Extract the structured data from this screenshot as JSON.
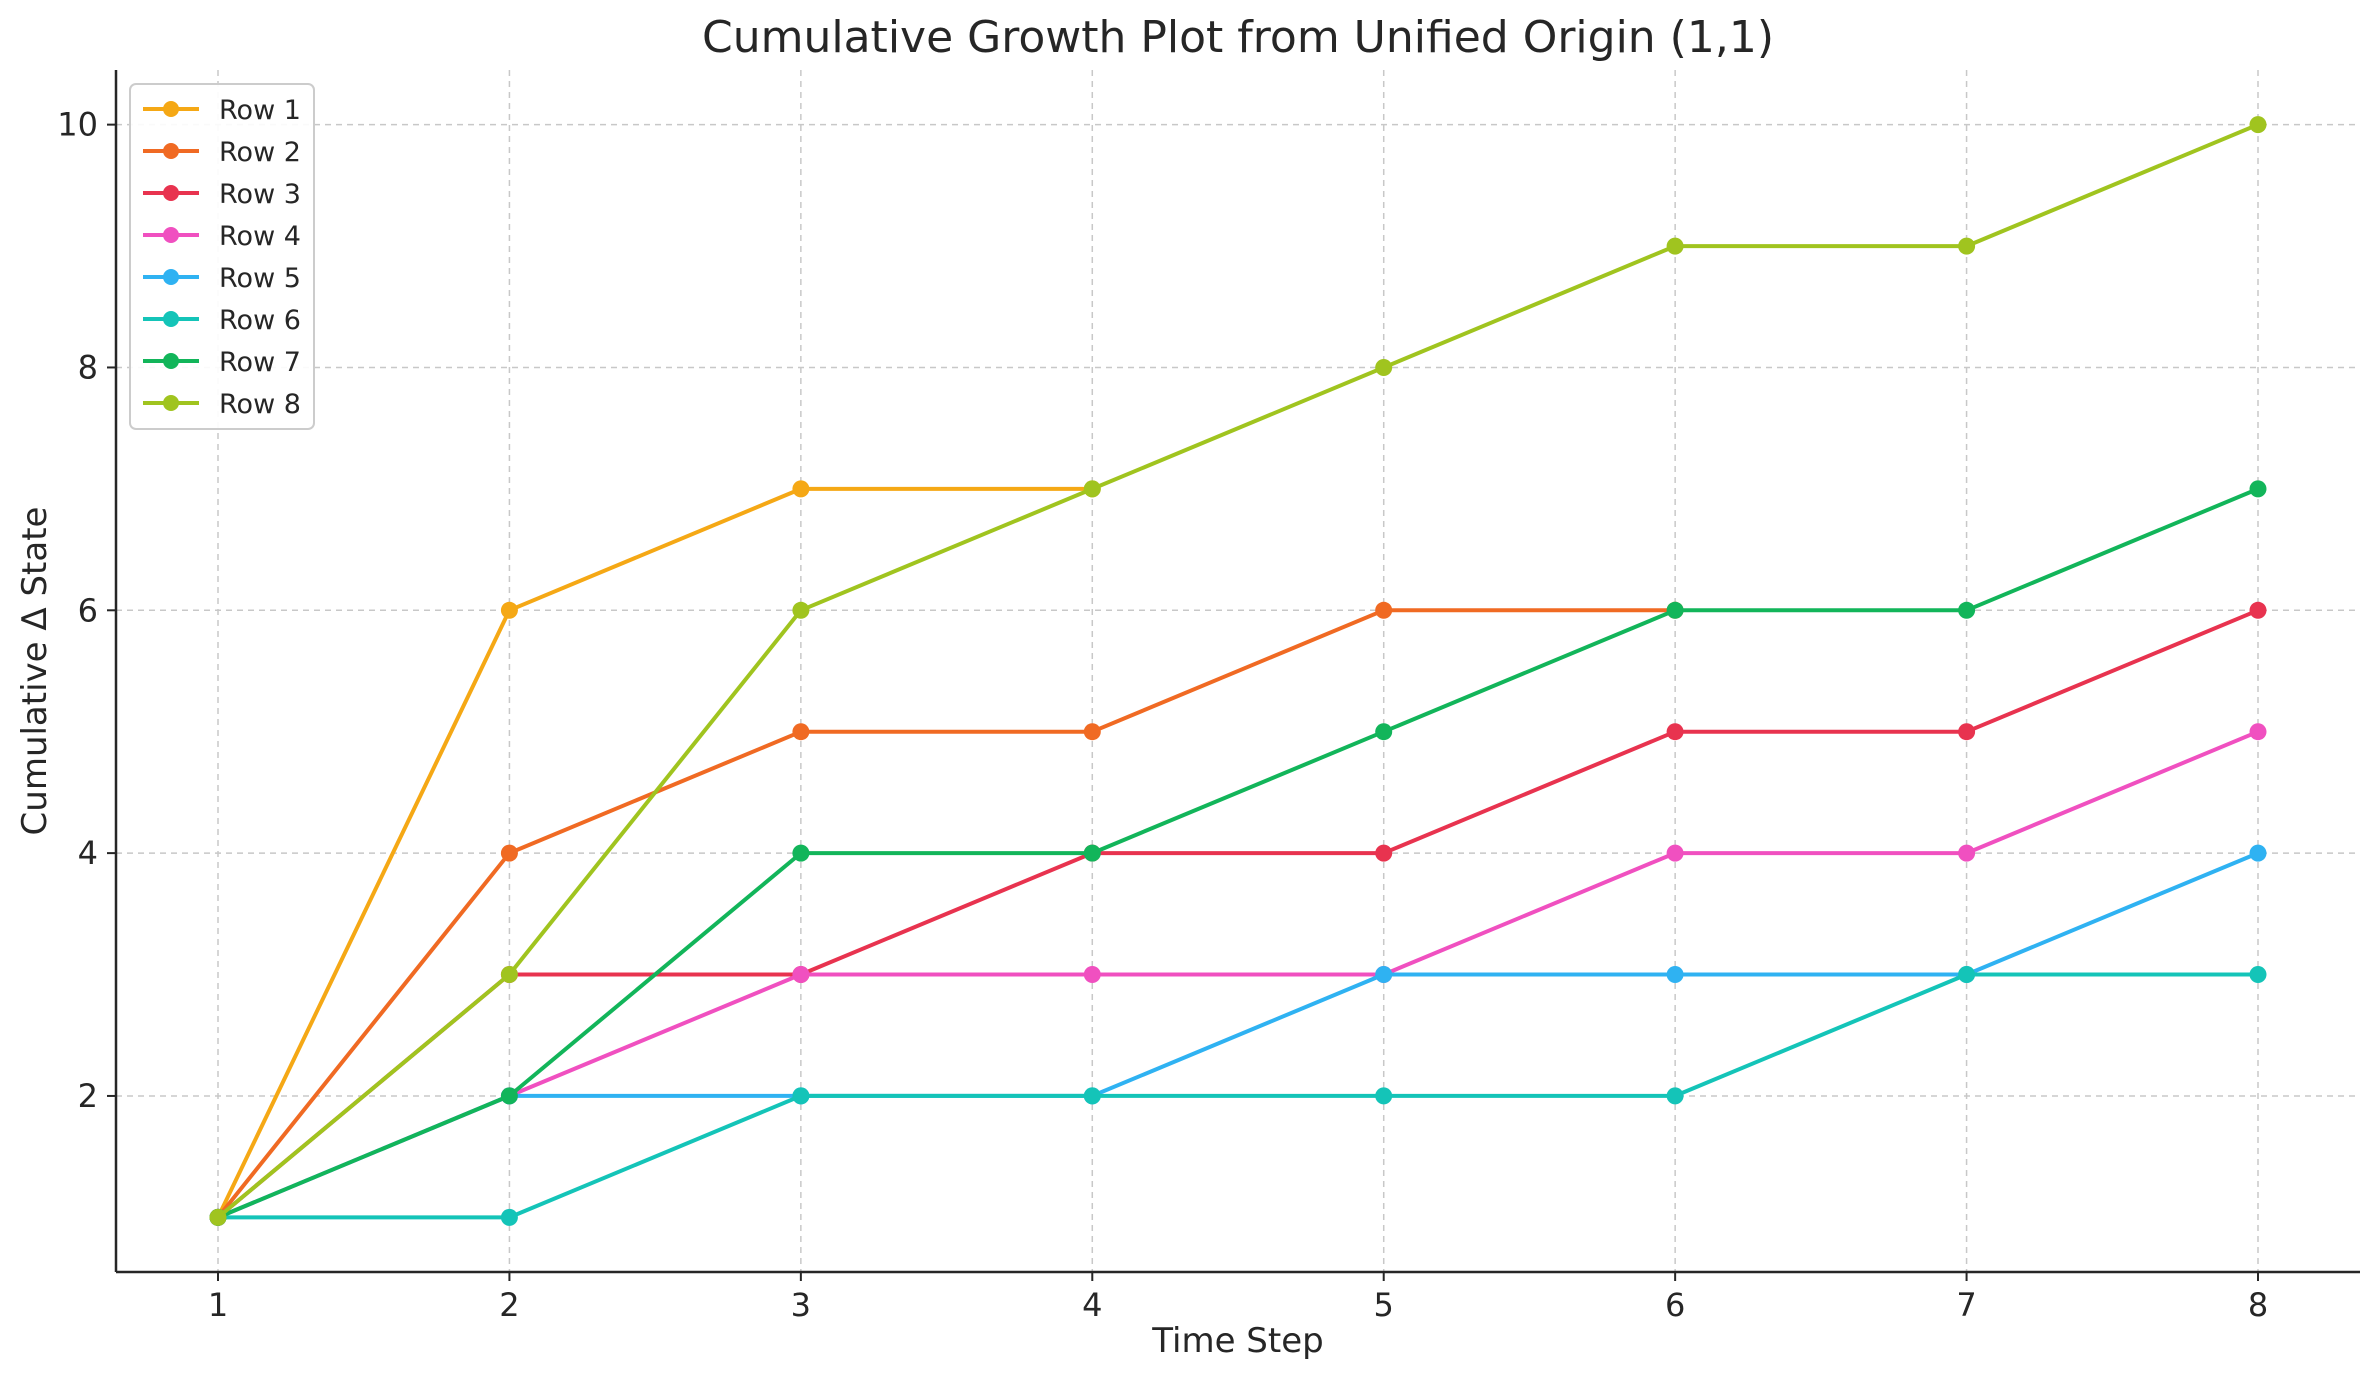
{
  "chart_data": {
    "type": "line",
    "title": "Cumulative Growth Plot from Unified Origin (1,1)",
    "xlabel": "Time Step",
    "ylabel": "Cumulative Δ State",
    "x": [
      1,
      2,
      3,
      4,
      5,
      6,
      7,
      8
    ],
    "xticks": [
      1,
      2,
      3,
      4,
      5,
      6,
      7,
      8
    ],
    "yticks": [
      2,
      4,
      6,
      8,
      10
    ],
    "xlim": [
      0.65,
      8.35
    ],
    "ylim": [
      0.55,
      10.45
    ],
    "grid": true,
    "grid_style": "dashed",
    "legend_position": "upper-left",
    "marker": "circle",
    "series": [
      {
        "name": "Row 1",
        "color": "#f5a815",
        "values": [
          1,
          6,
          7,
          7,
          null,
          null,
          null,
          null
        ]
      },
      {
        "name": "Row 2",
        "color": "#f06a23",
        "values": [
          1,
          4,
          5,
          5,
          6,
          6,
          null,
          null
        ]
      },
      {
        "name": "Row 3",
        "color": "#e8334f",
        "values": [
          1,
          3,
          3,
          4,
          4,
          5,
          5,
          6
        ]
      },
      {
        "name": "Row 4",
        "color": "#f050c0",
        "values": [
          1,
          2,
          3,
          3,
          3,
          4,
          4,
          5
        ]
      },
      {
        "name": "Row 5",
        "color": "#2fb2f2",
        "values": [
          1,
          2,
          2,
          2,
          3,
          3,
          3,
          4
        ]
      },
      {
        "name": "Row 6",
        "color": "#14c4b8",
        "values": [
          1,
          1,
          2,
          2,
          2,
          2,
          3,
          3
        ]
      },
      {
        "name": "Row 7",
        "color": "#12b55a",
        "values": [
          1,
          2,
          4,
          4,
          5,
          6,
          6,
          7
        ]
      },
      {
        "name": "Row 8",
        "color": "#a0c41f",
        "values": [
          1,
          3,
          6,
          7,
          8,
          9,
          9,
          10
        ]
      }
    ]
  }
}
